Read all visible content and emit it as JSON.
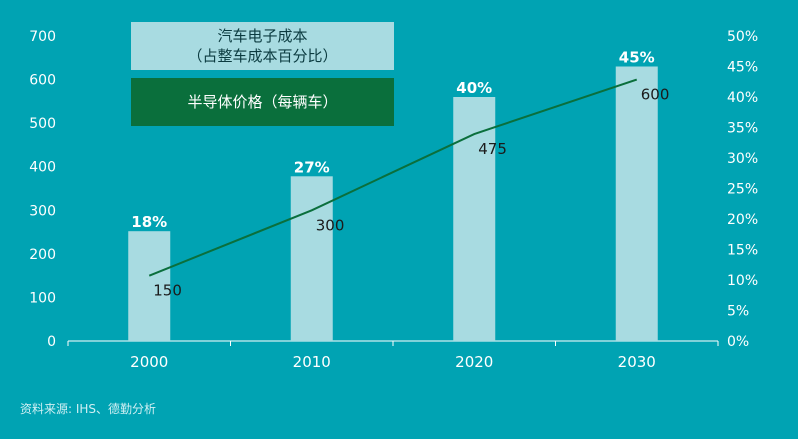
{
  "chart_data": {
    "type": "bar",
    "categories": [
      "2000",
      "2010",
      "2020",
      "2030"
    ],
    "series": [
      {
        "name": "汽车电子成本（占整车成本百分比）",
        "type": "bar",
        "axis": "right",
        "values": [
          18,
          27,
          40,
          45
        ],
        "labels": [
          "18%",
          "27%",
          "40%",
          "45%"
        ]
      },
      {
        "name": "半导体价格（每辆车）",
        "type": "line",
        "axis": "left",
        "values": [
          150,
          300,
          475,
          600
        ],
        "labels": [
          "150",
          "300",
          "475",
          "600"
        ]
      }
    ],
    "left_axis": {
      "ticks": [
        "0",
        "100",
        "200",
        "300",
        "400",
        "500",
        "600",
        "700"
      ],
      "range": [
        0,
        700
      ]
    },
    "right_axis": {
      "ticks": [
        "0%",
        "5%",
        "10%",
        "15%",
        "20%",
        "25%",
        "30%",
        "35%",
        "40%",
        "45%",
        "50%"
      ],
      "range": [
        0,
        50
      ]
    },
    "legend": {
      "bar_line1": "汽车电子成本",
      "bar_line2": "（占整车成本百分比）",
      "line": "半导体价格（每辆车）",
      "placement": "top-left"
    },
    "colors": {
      "background": "#00a3b3",
      "bar": "#a8dbe1",
      "line": "#0a6f3c"
    }
  },
  "footer": {
    "source": "资料来源: IHS、德勤分析"
  }
}
